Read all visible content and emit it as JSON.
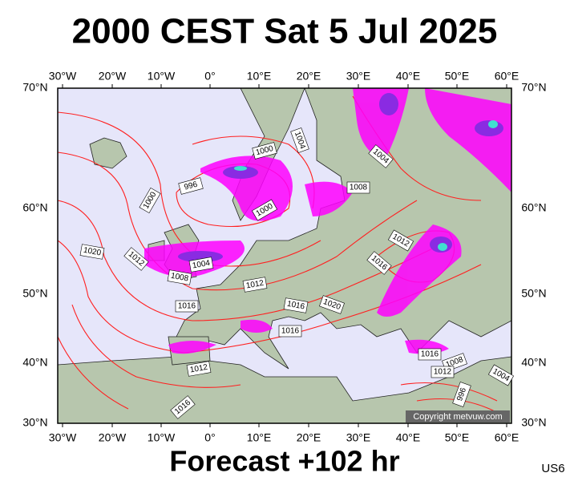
{
  "header": {
    "title": "2000 CEST Sat 5 Jul 2025"
  },
  "footer": {
    "forecast": "Forecast +102 hr",
    "code": "US6",
    "copyright": "Copyright metvuw.com"
  },
  "longitude_labels": [
    "30°W",
    "20°W",
    "10°W",
    "0°",
    "10°E",
    "20°E",
    "30°E",
    "40°E",
    "50°E",
    "60°E"
  ],
  "latitude_labels": [
    "70°N",
    "60°N",
    "50°N",
    "40°N",
    "30°N"
  ],
  "isobar_labels": [
    1000,
    1004,
    1004,
    996,
    1000,
    1008,
    1000,
    1020,
    1012,
    1004,
    1008,
    1012,
    1016,
    1012,
    1016,
    1016,
    1020,
    1016,
    1016,
    1008,
    1012,
    1004,
    1012,
    996,
    1016
  ]
}
